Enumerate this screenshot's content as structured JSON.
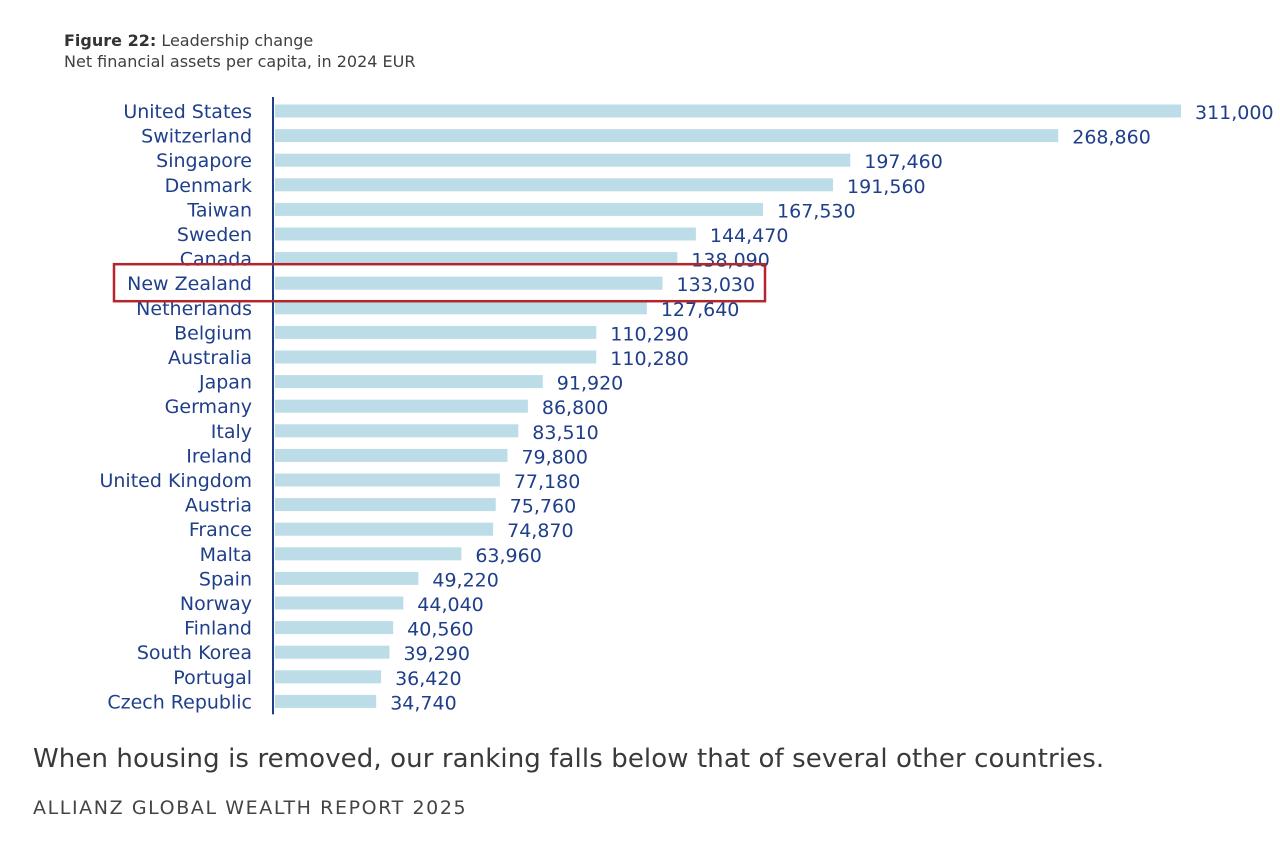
{
  "figure": {
    "label": "Figure 22:",
    "title": "Leadership change",
    "subtitle": "Net financial assets per capita, in 2024 EUR"
  },
  "chart_data": {
    "type": "bar",
    "orientation": "horizontal",
    "title": "Leadership change",
    "subtitle": "Net financial assets per capita, in 2024 EUR",
    "categories": [
      "United States",
      "Switzerland",
      "Singapore",
      "Denmark",
      "Taiwan",
      "Sweden",
      "Canada",
      "New Zealand",
      "Netherlands",
      "Belgium",
      "Australia",
      "Japan",
      "Germany",
      "Italy",
      "Ireland",
      "United Kingdom",
      "Austria",
      "France",
      "Malta",
      "Spain",
      "Norway",
      "Finland",
      "South Korea",
      "Portugal",
      "Czech Republic"
    ],
    "values": [
      311000,
      268860,
      197460,
      191560,
      167530,
      144470,
      138090,
      133030,
      127640,
      110290,
      110280,
      91920,
      86800,
      83510,
      79800,
      77180,
      75760,
      74870,
      63960,
      49220,
      44040,
      40560,
      39290,
      36420,
      34740
    ],
    "value_labels": [
      "311,000",
      "268,860",
      "197,460",
      "191,560",
      "167,530",
      "144,470",
      "138,090",
      "133,030",
      "127,640",
      "110,290",
      "110,280",
      "91,920",
      "86,800",
      "83,510",
      "79,800",
      "77,180",
      "75,760",
      "74,870",
      "63,960",
      "49,220",
      "44,040",
      "40,560",
      "39,290",
      "36,420",
      "34,740"
    ],
    "highlight": "New Zealand",
    "colors": {
      "bar": "#bcdce8",
      "label": "#1f3f8a",
      "axis": "#1f3f8a",
      "highlight_box": "#b3262b"
    },
    "grid": false,
    "legend": "none"
  },
  "caption": "When housing is removed, our ranking falls below that of several other countries.",
  "source": "ALLIANZ GLOBAL WEALTH REPORT 2025"
}
